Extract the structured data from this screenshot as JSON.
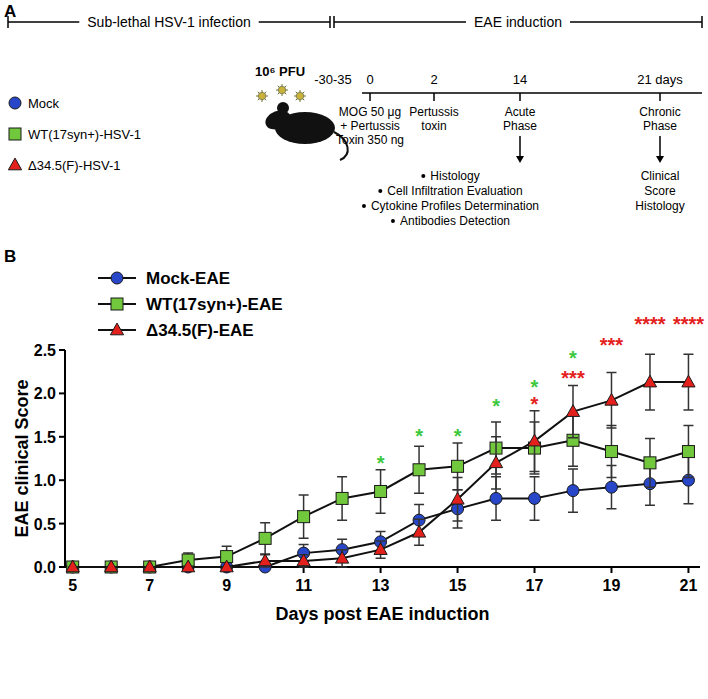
{
  "panel_a": {
    "label": "A",
    "phases": [
      "Sub-lethal HSV-1 infection",
      "EAE induction"
    ],
    "legend": [
      {
        "name": "Mock",
        "color": "#2747c8",
        "marker": "circle"
      },
      {
        "name": "WT(17syn+)-HSV-1",
        "color": "#72c83c",
        "marker": "square"
      },
      {
        "name": "Δ34.5(F)-HSV-1",
        "color": "#e3201c",
        "marker": "triangle"
      }
    ],
    "inoculum": "10⁶ PFU",
    "timeline": [
      {
        "label": "-30-35",
        "notes": []
      },
      {
        "label": "0",
        "notes": [
          "MOG 50 μg",
          "+ Pertussis",
          "Toxin 350 ng"
        ]
      },
      {
        "label": "2",
        "notes": [
          "Pertussis",
          "toxin"
        ]
      },
      {
        "label": "14",
        "notes": [
          "Acute",
          "Phase"
        ],
        "analyses": [
          "Histology",
          "Cell Infiltration Evaluation",
          "Cytokine Profiles Determination",
          "Antibodies Detection"
        ]
      },
      {
        "label": "21 days",
        "notes": [
          "Chronic",
          "Phase"
        ],
        "analyses": [
          "Clinical",
          "Score",
          "Histology"
        ]
      }
    ]
  },
  "chart_data": {
    "type": "line",
    "panel_label": "B",
    "x_label": "Days post EAE induction",
    "y_label": "EAE clinical Score",
    "x": [
      5,
      6,
      7,
      8,
      9,
      10,
      11,
      12,
      13,
      14,
      15,
      16,
      17,
      18,
      19,
      20,
      21
    ],
    "series": [
      {
        "name": "Mock-EAE",
        "color": "#2747c8",
        "marker": "circle",
        "values": [
          0,
          0,
          0,
          0,
          0,
          0,
          0.16,
          0.2,
          0.29,
          0.54,
          0.67,
          0.79,
          0.79,
          0.88,
          0.92,
          0.96,
          1.0
        ],
        "errors": [
          0,
          0,
          0,
          0,
          0,
          0,
          0.1,
          0.12,
          0.12,
          0.18,
          0.22,
          0.25,
          0.25,
          0.25,
          0.25,
          0.25,
          0.27
        ]
      },
      {
        "name": "WT(17syn+)-EAE",
        "color": "#72c83c",
        "marker": "square",
        "values": [
          0,
          0,
          0,
          0.08,
          0.12,
          0.33,
          0.58,
          0.79,
          0.87,
          1.12,
          1.16,
          1.37,
          1.37,
          1.46,
          1.33,
          1.2,
          1.33
        ],
        "errors": [
          0,
          0,
          0,
          0.08,
          0.12,
          0.18,
          0.25,
          0.25,
          0.25,
          0.27,
          0.27,
          0.3,
          0.3,
          0.3,
          0.3,
          0.28,
          0.3
        ]
      },
      {
        "name": "Δ34.5(F)-EAE",
        "color": "#e3201c",
        "marker": "triangle",
        "values": [
          0,
          0,
          0,
          0,
          0,
          0.07,
          0.07,
          0.1,
          0.2,
          0.4,
          0.78,
          1.2,
          1.45,
          1.79,
          1.92,
          2.13,
          2.13
        ],
        "errors": [
          0,
          0,
          0,
          0,
          0,
          0.07,
          0.07,
          0.1,
          0.1,
          0.15,
          0.25,
          0.3,
          0.35,
          0.3,
          0.32,
          0.32,
          0.32
        ]
      }
    ],
    "annotations": [
      {
        "x": 13,
        "y": 1.25,
        "text": "*",
        "color": "#3cc83c"
      },
      {
        "x": 14,
        "y": 1.55,
        "text": "*",
        "color": "#3cc83c"
      },
      {
        "x": 15,
        "y": 1.55,
        "text": "*",
        "color": "#3cc83c"
      },
      {
        "x": 16,
        "y": 1.9,
        "text": "*",
        "color": "#3cc83c"
      },
      {
        "x": 17,
        "y": 2.12,
        "text": "*",
        "color": "#3cc83c"
      },
      {
        "x": 17,
        "y": 1.92,
        "text": "*",
        "color": "#e3201c"
      },
      {
        "x": 18,
        "y": 2.45,
        "text": "*",
        "color": "#3cc83c"
      },
      {
        "x": 18,
        "y": 2.22,
        "text": "***",
        "color": "#e3201c"
      },
      {
        "x": 19,
        "y": 2.6,
        "text": "***",
        "color": "#e3201c"
      },
      {
        "x": 20,
        "y": 2.85,
        "text": "****",
        "color": "#e3201c"
      },
      {
        "x": 21,
        "y": 2.85,
        "text": "****",
        "color": "#e3201c"
      }
    ],
    "xlim": [
      4.8,
      21.3
    ],
    "xticks": [
      5,
      7,
      9,
      11,
      13,
      15,
      17,
      19,
      21
    ],
    "ylim": [
      0,
      2.5
    ],
    "yticks": [
      {
        "value": 0,
        "label": "0.0"
      },
      {
        "value": 0.5,
        "label": "0.5"
      },
      {
        "value": 1,
        "label": "1.0"
      },
      {
        "value": 1.5,
        "label": "1.5"
      },
      {
        "value": 2,
        "label": "2.0"
      },
      {
        "value": 2.5,
        "label": "2.5"
      }
    ],
    "legend": "top-left",
    "grid": false
  }
}
